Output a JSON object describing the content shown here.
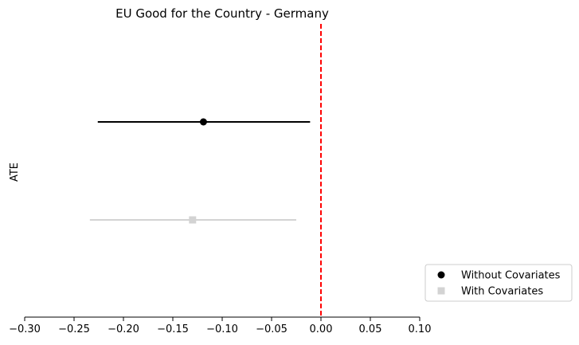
{
  "chart_data": {
    "type": "scatter",
    "title": "EU Good for the Country - Germany",
    "xlabel": "",
    "ylabel": "ATE",
    "xlim": [
      -0.3,
      0.1
    ],
    "xticks": [
      -0.3,
      -0.25,
      -0.2,
      -0.15,
      -0.1,
      -0.05,
      0.0,
      0.05,
      0.1
    ],
    "xtick_labels": [
      "−0.30",
      "−0.25",
      "−0.20",
      "−0.15",
      "−0.10",
      "−0.05",
      "0.00",
      "0.05",
      "0.10"
    ],
    "reference_line": {
      "x": 0.0,
      "color": "#ff0000",
      "style": "dashed"
    },
    "grid": false,
    "legend_position": "lower-right-outside",
    "series": [
      {
        "name": "Without Covariates",
        "estimate": -0.119,
        "ci": [
          -0.226,
          -0.011
        ],
        "color": "#000000",
        "marker": "circle"
      },
      {
        "name": "With Covariates",
        "estimate": -0.13,
        "ci": [
          -0.234,
          -0.025
        ],
        "color": "#d3d3d3",
        "marker": "square"
      }
    ]
  }
}
